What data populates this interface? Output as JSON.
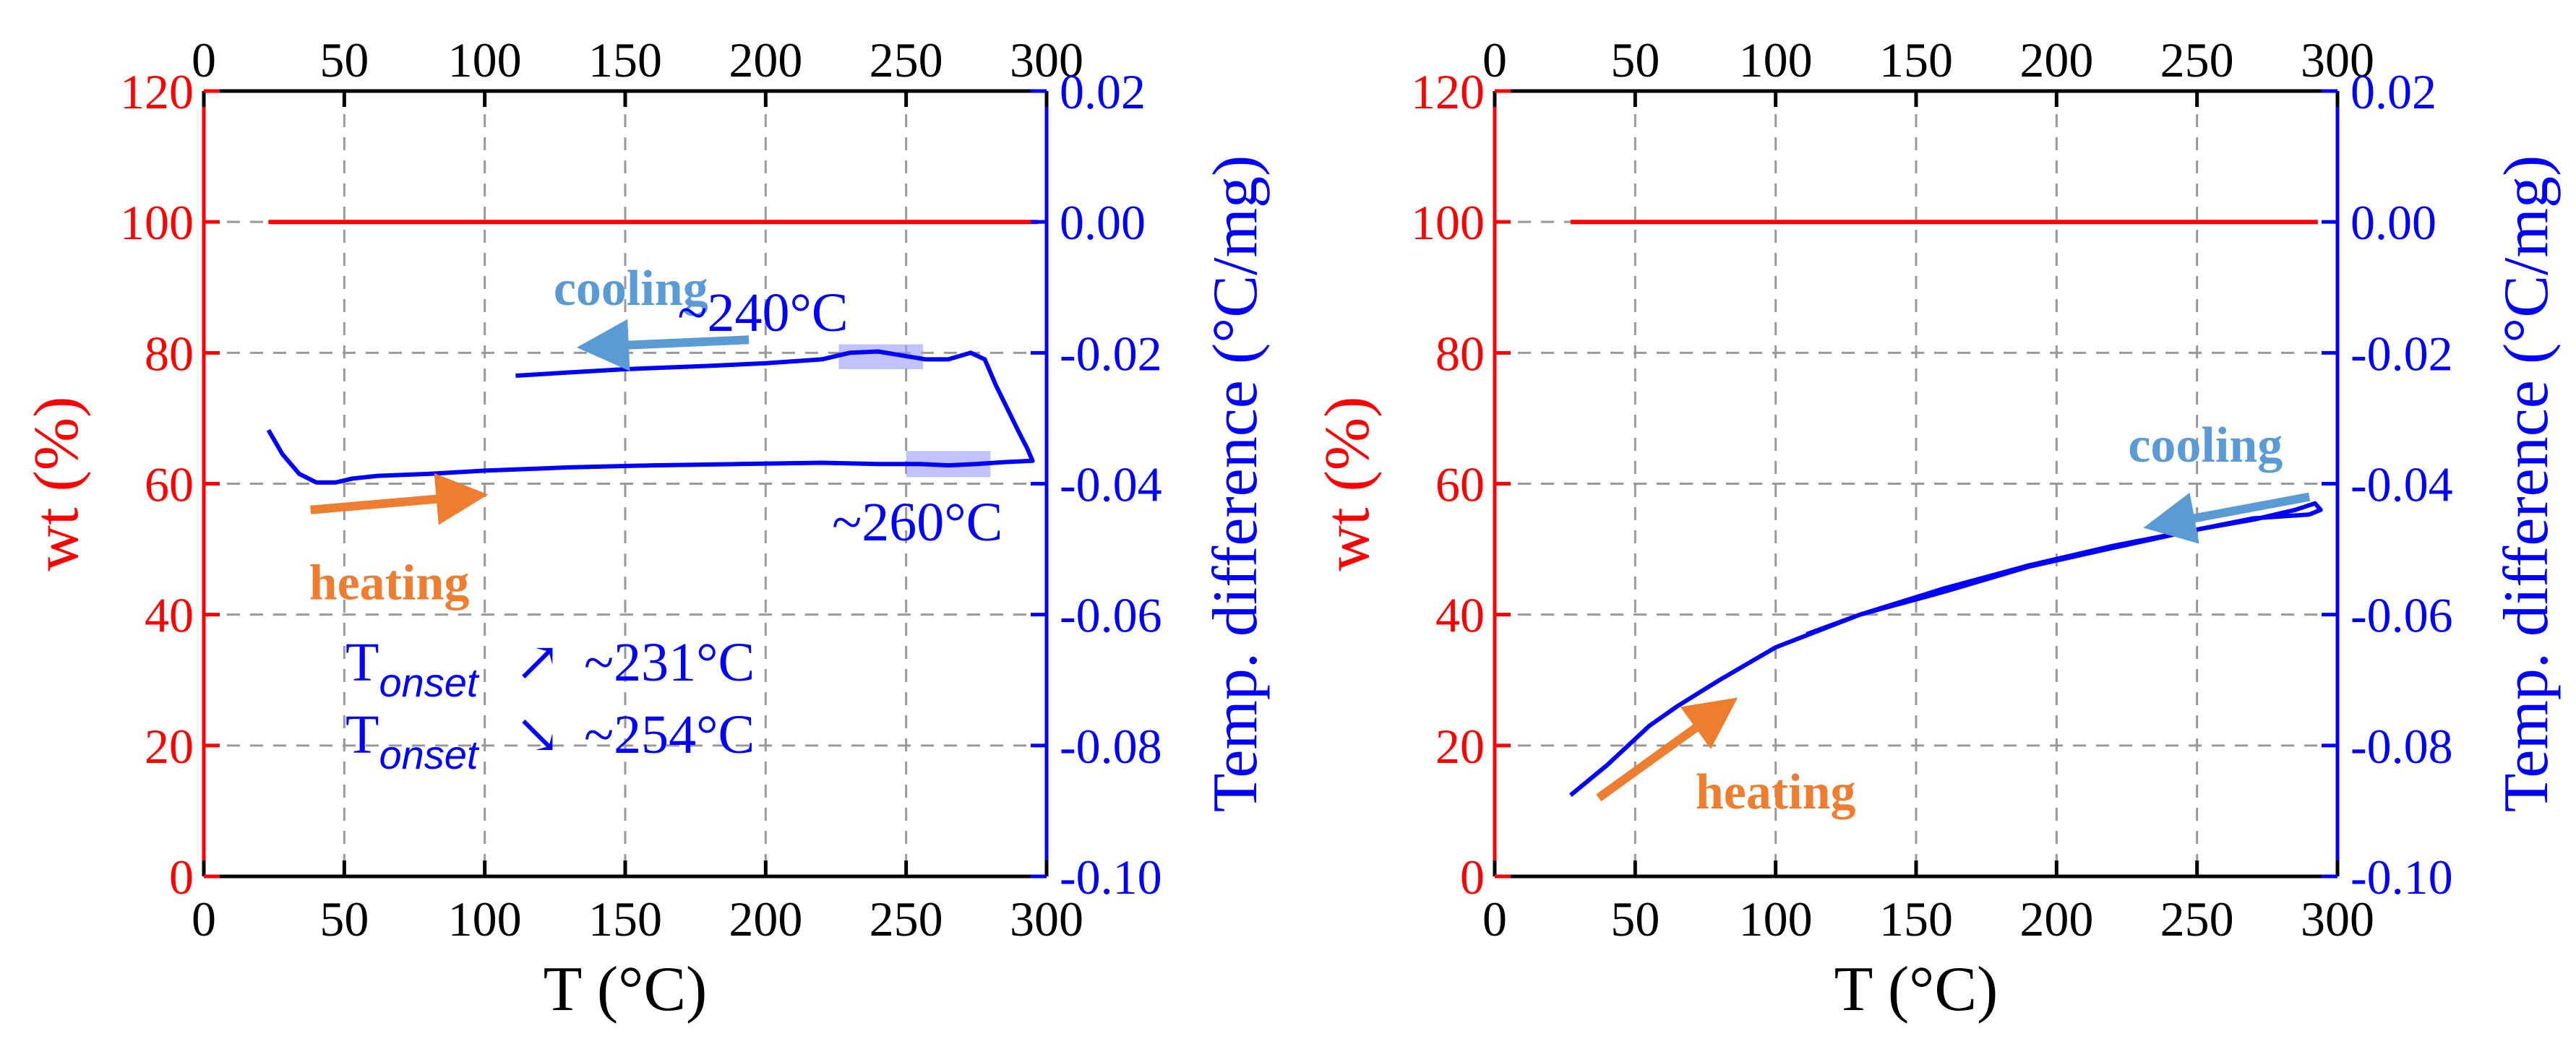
{
  "chart_data": [
    {
      "type": "line",
      "panel": "left",
      "xlabel": "T (°C)",
      "ylabel_left": "wt (%)",
      "ylabel_right": "Temp. difference (°C/mg)",
      "xlim": [
        0,
        300
      ],
      "ylim_left": [
        0,
        120
      ],
      "ylim_right": [
        -0.1,
        0.02
      ],
      "x_ticks": [
        "0",
        "50",
        "100",
        "150",
        "200",
        "250",
        "300"
      ],
      "y_ticks_left": [
        "0",
        "20",
        "40",
        "60",
        "80",
        "100",
        "120"
      ],
      "y_ticks_right": [
        "-0.10",
        "-0.08",
        "-0.06",
        "-0.04",
        "-0.02",
        "0.00",
        "0.02"
      ],
      "grid": true,
      "colors": {
        "weight": "#ff0000",
        "temp_diff": "#0000ff",
        "heating": "#ed7d31",
        "cooling": "#5b9bd5",
        "highlight": "#9999ff"
      },
      "series": [
        {
          "axis": "left",
          "color": "#ff0000",
          "points": [
            [
              23,
              100
            ],
            [
              297,
              100
            ]
          ]
        },
        {
          "axis": "right",
          "color": "#0000ff",
          "points": [
            [
              23,
              -0.0318
            ],
            [
              28,
              -0.0355
            ],
            [
              34,
              -0.0385
            ],
            [
              40,
              -0.0398
            ],
            [
              47,
              -0.0398
            ],
            [
              53,
              -0.0392
            ],
            [
              62,
              -0.0388
            ],
            [
              80,
              -0.0385
            ],
            [
              100,
              -0.038
            ],
            [
              130,
              -0.0375
            ],
            [
              160,
              -0.0372
            ],
            [
              190,
              -0.037
            ],
            [
              220,
              -0.0368
            ],
            [
              240,
              -0.037
            ],
            [
              255,
              -0.037
            ],
            [
              265,
              -0.0372
            ],
            [
              275,
              -0.037
            ],
            [
              285,
              -0.0367
            ],
            [
              295,
              -0.0365
            ],
            [
              293,
              -0.0345
            ],
            [
              290,
              -0.032
            ],
            [
              286,
              -0.0285
            ],
            [
              282,
              -0.025
            ],
            [
              278,
              -0.021
            ],
            [
              273,
              -0.02
            ],
            [
              265,
              -0.021
            ],
            [
              257,
              -0.021
            ],
            [
              250,
              -0.0205
            ],
            [
              240,
              -0.0198
            ],
            [
              230,
              -0.02
            ],
            [
              220,
              -0.021
            ],
            [
              200,
              -0.0216
            ],
            [
              180,
              -0.022
            ],
            [
              150,
              -0.0225
            ],
            [
              130,
              -0.023
            ],
            [
              111,
              -0.0235
            ]
          ]
        }
      ],
      "annotations": [
        {
          "text": "cooling",
          "color": "#5b9bd5",
          "x": 152,
          "y": 90
        },
        {
          "text": "~240°C",
          "color": "#0000ff",
          "x": 199,
          "y": 86
        },
        {
          "text": "~260°C",
          "color": "#0000ff",
          "x": 254,
          "y": 54
        },
        {
          "text": "heating",
          "color": "#ed7d31",
          "x": 66,
          "y": 45
        },
        {
          "text": "T",
          "sub": "onset",
          "arrow": "↗",
          "value": "~231°C"
        },
        {
          "text": "T",
          "sub": "onset",
          "arrow": "↘",
          "value": "~254°C"
        }
      ],
      "highlights": [
        {
          "x": [
            226,
            256
          ],
          "y": [
            -0.0225,
            -0.0187
          ]
        },
        {
          "x": [
            250,
            280
          ],
          "y": [
            -0.039,
            -0.035
          ]
        }
      ],
      "arrows": [
        {
          "name": "cooling",
          "color": "#5b9bd5",
          "from": [
            194,
            82
          ],
          "to": [
            142,
            81
          ]
        },
        {
          "name": "heating",
          "color": "#ed7d31",
          "from": [
            38,
            56
          ],
          "to": [
            92,
            58
          ]
        }
      ]
    },
    {
      "type": "line",
      "panel": "right",
      "xlabel": "T (°C)",
      "ylabel_left": "wt (%)",
      "ylabel_right": "Temp. difference (°C/mg)",
      "xlim": [
        0,
        300
      ],
      "ylim_left": [
        0,
        120
      ],
      "ylim_right": [
        -0.1,
        0.02
      ],
      "x_ticks": [
        "0",
        "50",
        "100",
        "150",
        "200",
        "250",
        "300"
      ],
      "y_ticks_left": [
        "0",
        "20",
        "40",
        "60",
        "80",
        "100",
        "120"
      ],
      "y_ticks_right": [
        "-0.10",
        "-0.08",
        "-0.06",
        "-0.04",
        "-0.02",
        "0.00",
        "0.02"
      ],
      "grid": true,
      "colors": {
        "weight": "#ff0000",
        "temp_diff": "#0000ff",
        "heating": "#ed7d31",
        "cooling": "#5b9bd5"
      },
      "series": [
        {
          "axis": "left",
          "color": "#ff0000",
          "points": [
            [
              27,
              100
            ],
            [
              293,
              100
            ]
          ]
        },
        {
          "axis": "right",
          "color": "#0000ff",
          "points": [
            [
              27,
              -0.0876
            ],
            [
              40,
              -0.083
            ],
            [
              55,
              -0.077
            ],
            [
              65,
              -0.074
            ],
            [
              80,
              -0.07
            ],
            [
              100,
              -0.065
            ],
            [
              130,
              -0.06
            ],
            [
              160,
              -0.056
            ],
            [
              190,
              -0.0525
            ],
            [
              220,
              -0.0495
            ],
            [
              250,
              -0.047
            ],
            [
              270,
              -0.0455
            ],
            [
              285,
              -0.044
            ],
            [
              292,
              -0.043
            ],
            [
              294,
              -0.044
            ],
            [
              290,
              -0.0447
            ],
            [
              270,
              -0.0453
            ],
            [
              250,
              -0.047
            ],
            [
              220,
              -0.0498
            ],
            [
              190,
              -0.0527
            ],
            [
              160,
              -0.0565
            ],
            [
              130,
              -0.06
            ],
            [
              111,
              -0.063
            ]
          ]
        }
      ],
      "annotations": [
        {
          "text": "cooling",
          "color": "#5b9bd5",
          "x": 253,
          "y": 66
        },
        {
          "text": "heating",
          "color": "#ed7d31",
          "x": 100,
          "y": 13
        }
      ],
      "arrows": [
        {
          "name": "cooling",
          "color": "#5b9bd5",
          "from": [
            290,
            58
          ],
          "to": [
            240,
            54
          ]
        },
        {
          "name": "heating",
          "color": "#ed7d31",
          "from": [
            37,
            12
          ],
          "to": [
            79,
            25
          ]
        }
      ]
    }
  ]
}
